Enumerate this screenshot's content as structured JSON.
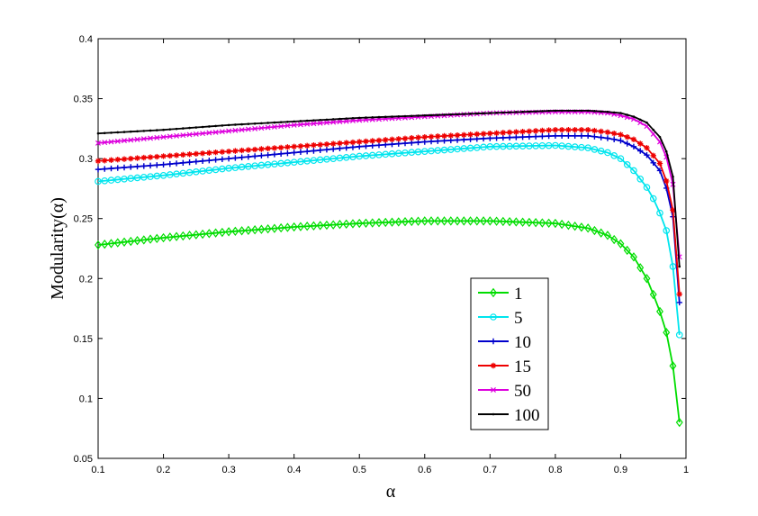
{
  "chart_data": {
    "type": "line",
    "title": "",
    "xlabel": "α",
    "ylabel": "Modularity(α)",
    "xlim": [
      0.1,
      1
    ],
    "ylim": [
      0.05,
      0.4
    ],
    "xticks": [
      "0.1",
      "0.2",
      "0.3",
      "0.4",
      "0.5",
      "0.6",
      "0.7",
      "0.8",
      "0.9",
      "1"
    ],
    "yticks": [
      "0.05",
      "0.1",
      "0.15",
      "0.2",
      "0.25",
      "0.3",
      "0.35",
      "0.4"
    ],
    "grid": false,
    "legend_position": "lower-right",
    "series": [
      {
        "name": "1",
        "color": "#00dd00",
        "marker": "diamond",
        "points": [
          [
            0.1,
            0.228
          ],
          [
            0.2,
            0.234
          ],
          [
            0.3,
            0.239
          ],
          [
            0.4,
            0.243
          ],
          [
            0.5,
            0.246
          ],
          [
            0.6,
            0.248
          ],
          [
            0.7,
            0.248
          ],
          [
            0.8,
            0.246
          ],
          [
            0.85,
            0.242
          ],
          [
            0.88,
            0.236
          ],
          [
            0.9,
            0.229
          ],
          [
            0.92,
            0.218
          ],
          [
            0.94,
            0.2
          ],
          [
            0.955,
            0.18
          ],
          [
            0.965,
            0.165
          ],
          [
            0.975,
            0.145
          ],
          [
            0.982,
            0.12
          ],
          [
            0.99,
            0.08
          ]
        ]
      },
      {
        "name": "5",
        "color": "#00e5ee",
        "marker": "circle",
        "points": [
          [
            0.1,
            0.281
          ],
          [
            0.2,
            0.286
          ],
          [
            0.3,
            0.292
          ],
          [
            0.4,
            0.297
          ],
          [
            0.5,
            0.302
          ],
          [
            0.6,
            0.306
          ],
          [
            0.7,
            0.31
          ],
          [
            0.8,
            0.311
          ],
          [
            0.85,
            0.309
          ],
          [
            0.88,
            0.305
          ],
          [
            0.9,
            0.3
          ],
          [
            0.92,
            0.29
          ],
          [
            0.94,
            0.276
          ],
          [
            0.955,
            0.262
          ],
          [
            0.97,
            0.24
          ],
          [
            0.98,
            0.21
          ],
          [
            0.99,
            0.153
          ]
        ]
      },
      {
        "name": "10",
        "color": "#0000cc",
        "marker": "plus",
        "points": [
          [
            0.1,
            0.291
          ],
          [
            0.2,
            0.295
          ],
          [
            0.3,
            0.3
          ],
          [
            0.4,
            0.305
          ],
          [
            0.5,
            0.31
          ],
          [
            0.6,
            0.314
          ],
          [
            0.7,
            0.317
          ],
          [
            0.8,
            0.319
          ],
          [
            0.85,
            0.319
          ],
          [
            0.88,
            0.317
          ],
          [
            0.9,
            0.315
          ],
          [
            0.92,
            0.31
          ],
          [
            0.94,
            0.303
          ],
          [
            0.96,
            0.29
          ],
          [
            0.975,
            0.268
          ],
          [
            0.985,
            0.235
          ],
          [
            0.99,
            0.18
          ]
        ]
      },
      {
        "name": "15",
        "color": "#ee0000",
        "marker": "asterisk",
        "points": [
          [
            0.1,
            0.298
          ],
          [
            0.2,
            0.302
          ],
          [
            0.3,
            0.306
          ],
          [
            0.4,
            0.31
          ],
          [
            0.5,
            0.314
          ],
          [
            0.6,
            0.318
          ],
          [
            0.7,
            0.321
          ],
          [
            0.8,
            0.324
          ],
          [
            0.85,
            0.324
          ],
          [
            0.88,
            0.322
          ],
          [
            0.9,
            0.32
          ],
          [
            0.92,
            0.316
          ],
          [
            0.94,
            0.309
          ],
          [
            0.96,
            0.296
          ],
          [
            0.975,
            0.274
          ],
          [
            0.985,
            0.24
          ],
          [
            0.99,
            0.187
          ]
        ]
      },
      {
        "name": "50",
        "color": "#dd00dd",
        "marker": "x",
        "points": [
          [
            0.1,
            0.313
          ],
          [
            0.2,
            0.318
          ],
          [
            0.3,
            0.323
          ],
          [
            0.4,
            0.328
          ],
          [
            0.5,
            0.332
          ],
          [
            0.6,
            0.335
          ],
          [
            0.7,
            0.338
          ],
          [
            0.8,
            0.339
          ],
          [
            0.85,
            0.339
          ],
          [
            0.88,
            0.338
          ],
          [
            0.9,
            0.336
          ],
          [
            0.92,
            0.333
          ],
          [
            0.94,
            0.327
          ],
          [
            0.96,
            0.314
          ],
          [
            0.975,
            0.295
          ],
          [
            0.985,
            0.262
          ],
          [
            0.99,
            0.218
          ]
        ]
      },
      {
        "name": "100",
        "color": "#000000",
        "marker": "dot",
        "points": [
          [
            0.1,
            0.321
          ],
          [
            0.2,
            0.324
          ],
          [
            0.3,
            0.328
          ],
          [
            0.4,
            0.331
          ],
          [
            0.5,
            0.334
          ],
          [
            0.6,
            0.336
          ],
          [
            0.7,
            0.338
          ],
          [
            0.8,
            0.34
          ],
          [
            0.85,
            0.34
          ],
          [
            0.88,
            0.339
          ],
          [
            0.9,
            0.338
          ],
          [
            0.92,
            0.335
          ],
          [
            0.94,
            0.33
          ],
          [
            0.96,
            0.318
          ],
          [
            0.975,
            0.3
          ],
          [
            0.985,
            0.27
          ],
          [
            0.99,
            0.21
          ]
        ]
      }
    ]
  }
}
